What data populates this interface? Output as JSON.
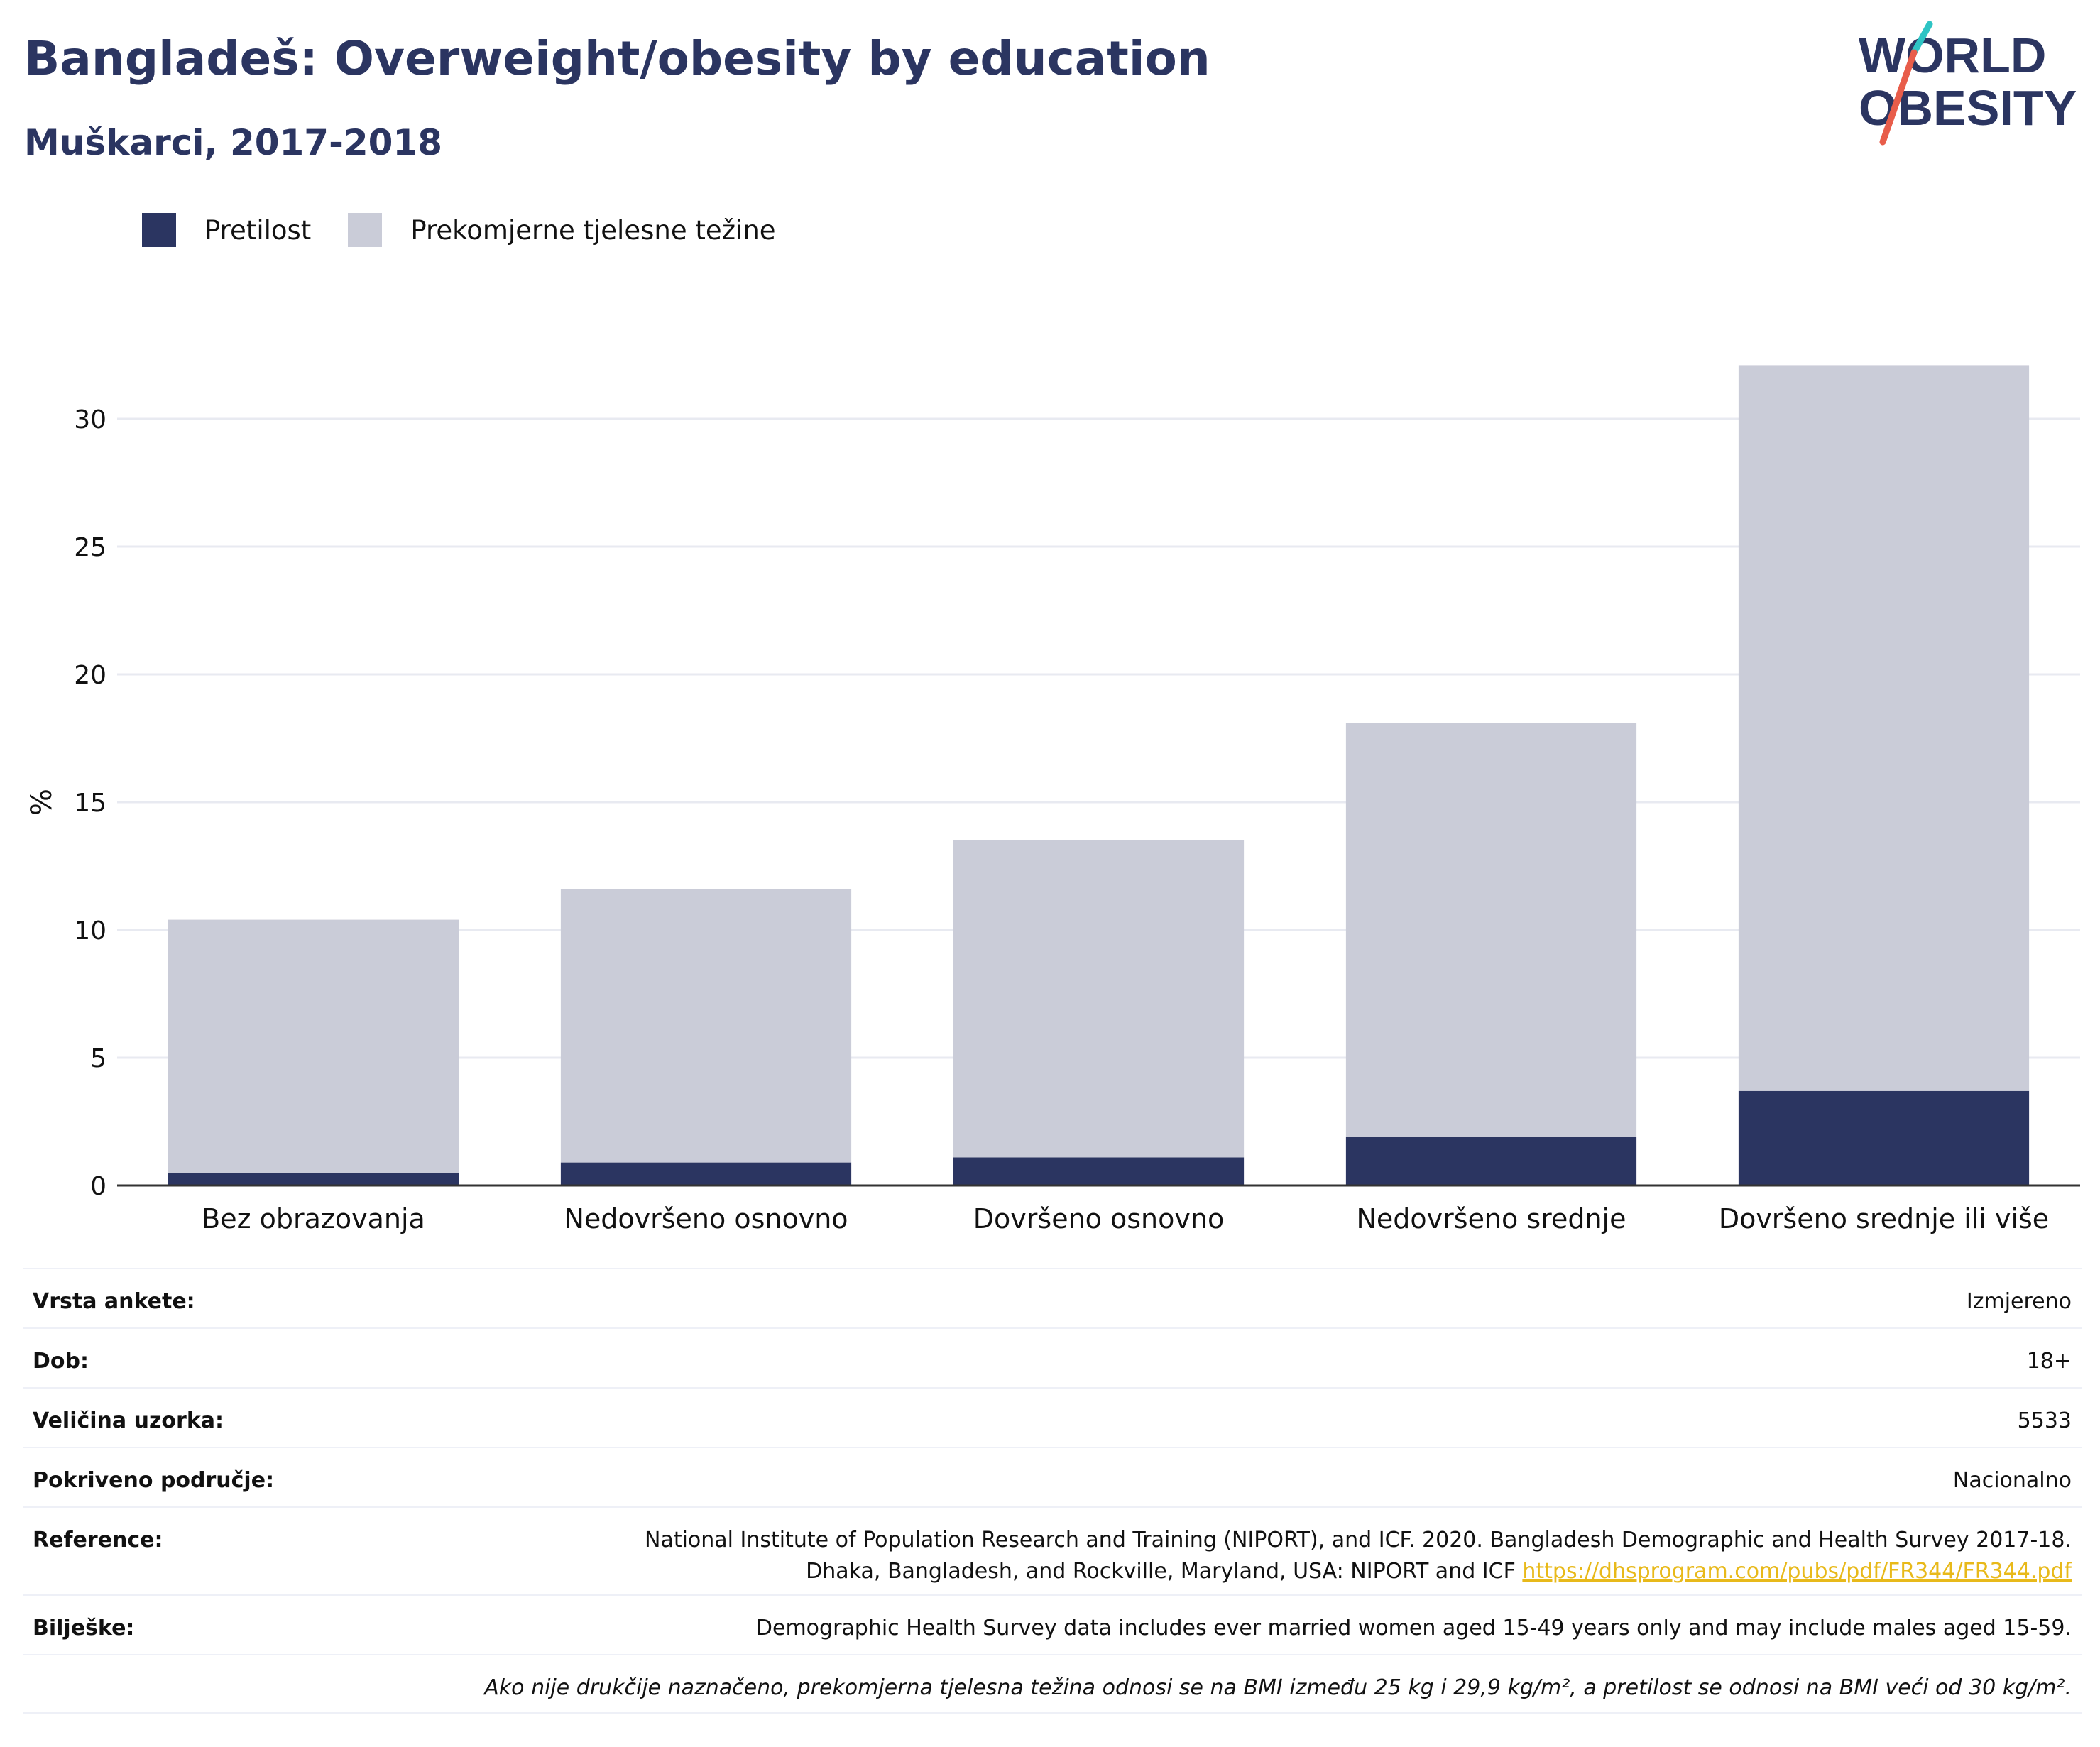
{
  "header": {
    "title": "Bangladeš: Overweight/obesity by education",
    "subtitle": "Muškarci, 2017-2018"
  },
  "logo": {
    "line1": "WORLD",
    "line2": "OBESITY",
    "text_color": "#2b3561",
    "accent_teal": "#2ec4c4",
    "accent_red": "#e85d4a"
  },
  "legend": [
    {
      "label": "Pretilost",
      "color": "#2b3561"
    },
    {
      "label": "Prekomjerne tjelesne težine",
      "color": "#caccd8"
    }
  ],
  "chart_data": {
    "type": "bar",
    "stacked": true,
    "categories": [
      "Bez obrazovanja",
      "Nedovršeno osnovno",
      "Dovršeno osnovno",
      "Nedovršeno srednje",
      "Dovršeno srednje ili više"
    ],
    "series": [
      {
        "name": "Pretilost",
        "values": [
          0.5,
          0.9,
          1.1,
          1.9,
          3.7
        ],
        "color": "#2b3561"
      },
      {
        "name": "Prekomjerne tjelesne težine",
        "values": [
          9.9,
          10.7,
          12.4,
          16.2,
          28.4
        ],
        "color": "#caccd8"
      }
    ],
    "ylabel": "%",
    "xlabel": "",
    "ylim": [
      0,
      32.5
    ],
    "yticks": [
      0,
      5,
      10,
      15,
      20,
      25,
      30
    ],
    "grid": true,
    "legend_position": "top-left"
  },
  "meta": {
    "survey_type": {
      "label": "Vrsta ankete:",
      "value": "Izmjereno"
    },
    "age": {
      "label": "Dob:",
      "value": "18+"
    },
    "sample_size": {
      "label": "Veličina uzorka:",
      "value": "5533"
    },
    "coverage": {
      "label": "Pokriveno područje:",
      "value": "Nacionalno"
    },
    "reference": {
      "label": "Reference:",
      "line1": "National Institute of Population Research and Training (NIPORT), and ICF. 2020. Bangladesh Demographic and Health Survey 2017-18.",
      "line2": "Dhaka, Bangladesh, and Rockville, Maryland, USA: NIPORT and ICF",
      "link": "https://dhsprogram.com/pubs/pdf/FR344/FR344.pdf"
    },
    "notes": {
      "label": "Bilješke:",
      "value": "Demographic Health Survey data includes ever married women aged 15-49 years only and may include males aged 15-59."
    },
    "footnote": "Ako nije drukčije naznačeno, prekomjerna tjelesna težina odnosi se na BMI između 25 kg i 29,9 kg/m², a pretilost se odnosi na BMI veći od 30 kg/m²."
  }
}
